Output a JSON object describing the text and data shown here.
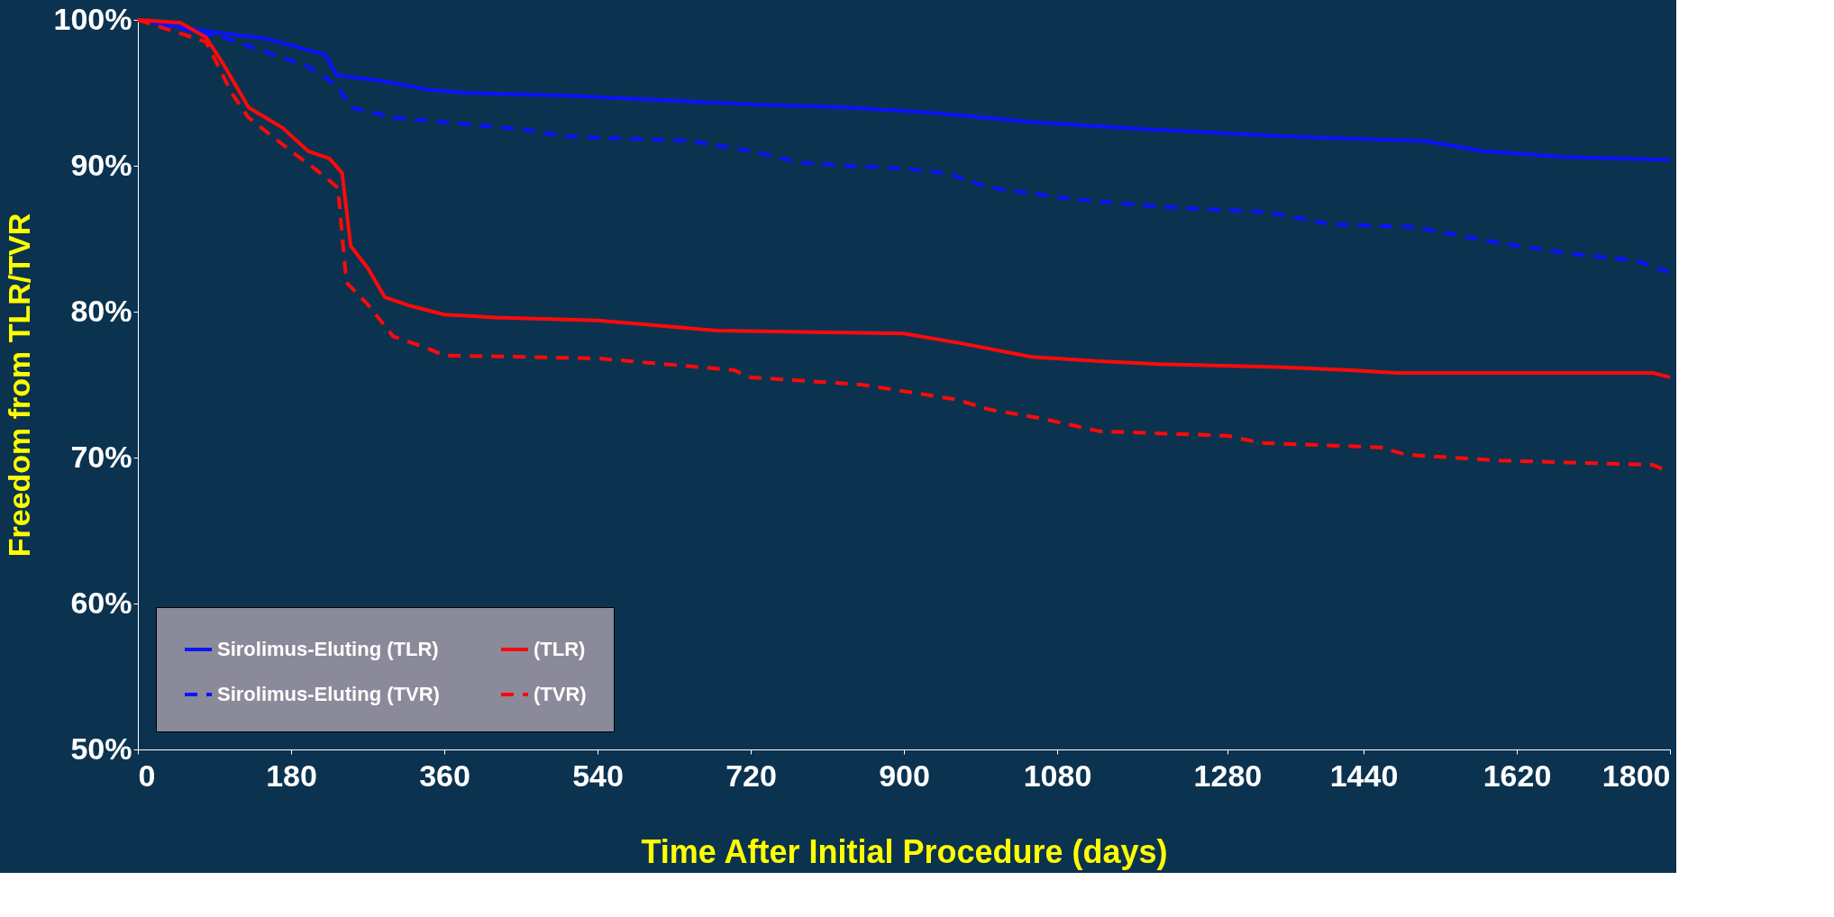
{
  "chart_data": {
    "type": "line",
    "xlabel": "Time After Initial Procedure (days)",
    "ylabel": "Freedom from TLR/TVR",
    "xlim": [
      0,
      1800
    ],
    "xticks": [
      0,
      180,
      360,
      540,
      720,
      900,
      1080,
      1280,
      1440,
      1620,
      1800
    ],
    "ylim": [
      50,
      100
    ],
    "yticks": [
      {
        "value": 50,
        "label": "50%"
      },
      {
        "value": 60,
        "label": "60%"
      },
      {
        "value": 70,
        "label": "70%"
      },
      {
        "value": 80,
        "label": "80%"
      },
      {
        "value": 90,
        "label": "90%"
      },
      {
        "value": 100,
        "label": "100%"
      }
    ],
    "grid": false,
    "legend": "bottom left",
    "marker": "none",
    "series": [
      {
        "name": "Sirolimus-Eluting (TLR)",
        "color": "#0a14ff",
        "line_style": "solid",
        "x": [
          0,
          71,
          152,
          220,
          234,
          288,
          343,
          383,
          506,
          614,
          723,
          832,
          941,
          1050,
          1158,
          1349,
          1512,
          1580,
          1675,
          1800
        ],
        "values": [
          100,
          99.3,
          98.7,
          97.6,
          96.2,
          95.8,
          95.2,
          95.0,
          94.8,
          94.5,
          94.2,
          94.0,
          93.6,
          93.0,
          92.6,
          92.0,
          91.7,
          91.0,
          90.6,
          90.4
        ]
      },
      {
        "name": "Sirolimus-Eluting (TVR)",
        "color": "#0a14ff",
        "line_style": "dashed",
        "x": [
          0,
          100,
          200,
          234,
          250,
          300,
          450,
          506,
          650,
          720,
          780,
          900,
          950,
          1000,
          1100,
          1200,
          1330,
          1400,
          1500,
          1600,
          1680,
          1760,
          1800
        ],
        "values": [
          100,
          98.8,
          96.8,
          95.5,
          94.0,
          93.3,
          92.5,
          92.0,
          91.7,
          91.0,
          90.2,
          89.8,
          89.5,
          88.5,
          87.7,
          87.2,
          86.8,
          86.0,
          85.8,
          84.7,
          84.0,
          83.5,
          82.7
        ]
      },
      {
        "name": "(TLR)",
        "color": "#ff0a0a",
        "line_style": "solid",
        "x": [
          0,
          50,
          80,
          100,
          130,
          170,
          200,
          225,
          240,
          250,
          270,
          290,
          320,
          360,
          420,
          540,
          600,
          680,
          900,
          970,
          1050,
          1130,
          1200,
          1340,
          1420,
          1480,
          1780,
          1800
        ],
        "values": [
          100,
          99.8,
          98.8,
          97,
          94,
          92.6,
          91,
          90.5,
          89.5,
          84.5,
          83,
          81,
          80.4,
          79.8,
          79.6,
          79.4,
          79.1,
          78.7,
          78.5,
          77.8,
          76.9,
          76.6,
          76.4,
          76.2,
          76.0,
          75.8,
          75.8,
          75.5
        ]
      },
      {
        "name": "(TVR)",
        "color": "#ff0a0a",
        "line_style": "dashed",
        "x": [
          0,
          80,
          110,
          130,
          180,
          210,
          235,
          245,
          270,
          300,
          340,
          360,
          540,
          600,
          700,
          720,
          850,
          960,
          1000,
          1060,
          1130,
          1280,
          1320,
          1460,
          1490,
          1600,
          1780,
          1800
        ],
        "values": [
          100,
          98.5,
          95,
          93.3,
          91,
          89.7,
          88.5,
          82,
          80.5,
          78.3,
          77.5,
          77.0,
          76.8,
          76.5,
          76.0,
          75.5,
          75.0,
          74.0,
          73.3,
          72.7,
          71.8,
          71.5,
          71.0,
          70.7,
          70.2,
          69.8,
          69.5,
          69.0
        ]
      }
    ]
  }
}
